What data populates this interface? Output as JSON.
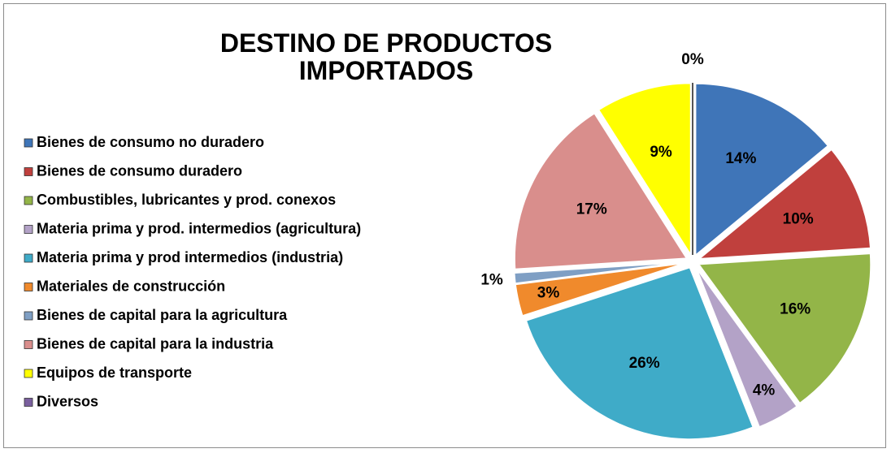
{
  "chart_data": {
    "type": "pie",
    "title": "DESTINO DE PRODUCTOS IMPORTADOS",
    "categories": [
      "Bienes de consumo no duradero",
      "Bienes de consumo duradero",
      "Combustibles, lubricantes y prod. conexos",
      "Materia prima y prod. intermedios (agricultura)",
      "Materia prima y prod intermedios (industria)",
      "Materiales de construcción",
      "Bienes de capital para la agricultura",
      "Bienes de capital para la industria",
      "Equipos de transporte",
      "Diversos"
    ],
    "values": [
      14,
      10,
      16,
      4,
      26,
      3,
      1,
      17,
      9,
      0
    ],
    "value_labels": [
      "14%",
      "10%",
      "16%",
      "4%",
      "26%",
      "3%",
      "1%",
      "17%",
      "9%",
      "0%"
    ],
    "colors": [
      "#3f75b8",
      "#c0403d",
      "#93b548",
      "#b3a2c7",
      "#3fabc8",
      "#f08a2c",
      "#7f9fc4",
      "#d98e8c",
      "#ffff00",
      "#7a5f9e"
    ],
    "legend": "left"
  }
}
